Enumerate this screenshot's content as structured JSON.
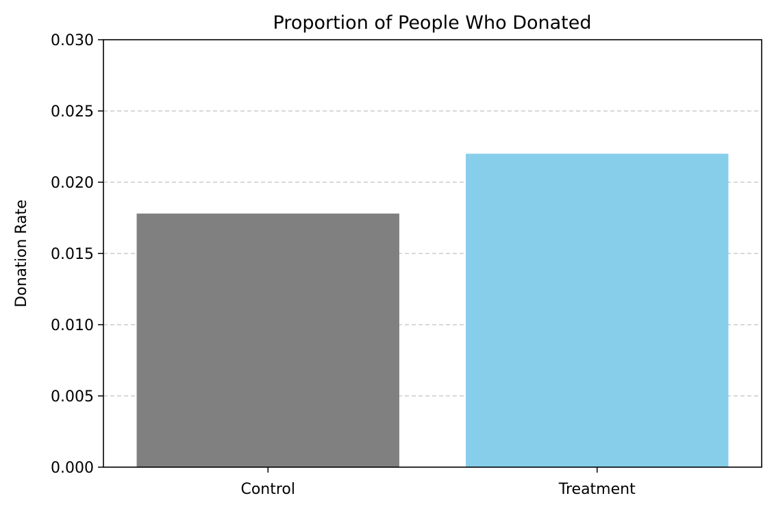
{
  "chart_data": {
    "type": "bar",
    "title": "Proportion of People Who Donated",
    "xlabel": "",
    "ylabel": "Donation Rate",
    "categories": [
      "Control",
      "Treatment"
    ],
    "values": [
      0.0178,
      0.022
    ],
    "colors": [
      "#808080",
      "#87CEEB"
    ],
    "ylim": [
      0,
      0.03
    ],
    "yticks": [
      "0.000",
      "0.005",
      "0.010",
      "0.015",
      "0.020",
      "0.025",
      "0.030"
    ],
    "grid": "y-dashed",
    "grid_color": "#c0c0c0",
    "legend": "none"
  }
}
